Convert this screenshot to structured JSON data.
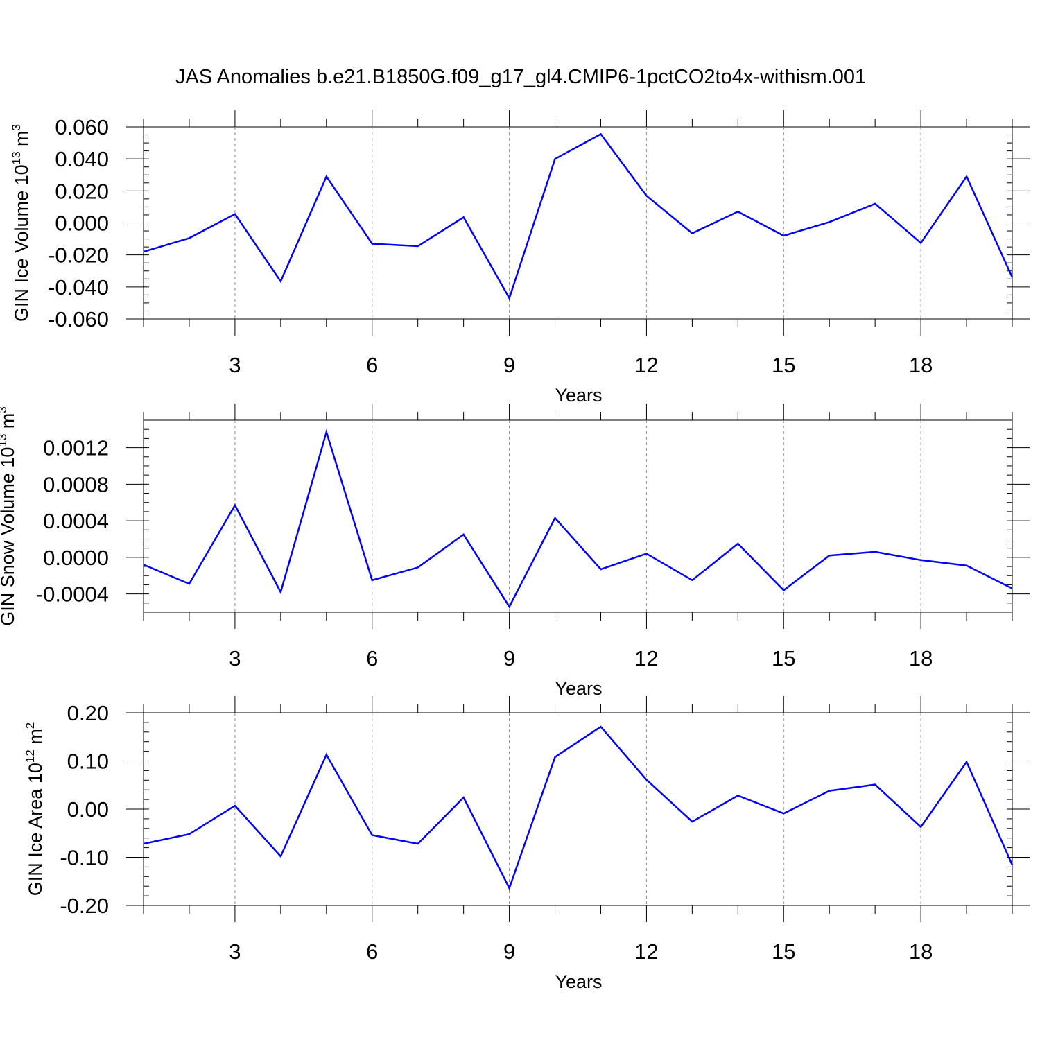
{
  "figure": {
    "title": "JAS Anomalies b.e21.B1850G.f09_g17_gl4.CMIP6-1pctCO2to4x-withism.001"
  },
  "line_color": "#0000ff",
  "chart_data": [
    {
      "type": "line",
      "xlabel": "Years",
      "ylabel_main": "GIN Ice Volume 10",
      "ylabel_exp": "13",
      "ylabel_unit": " m",
      "ylabel_unit_exp": "3",
      "xlim": [
        1,
        20
      ],
      "ylim": [
        -0.06,
        0.06
      ],
      "x_ticks": [
        3,
        6,
        9,
        12,
        15,
        18
      ],
      "x_tick_labels": [
        "3",
        "6",
        "9",
        "12",
        "15",
        "18"
      ],
      "y_ticks": [
        -0.06,
        -0.04,
        -0.02,
        0,
        0.02,
        0.04,
        0.06
      ],
      "y_tick_labels": [
        "-0.060",
        "-0.040",
        "-0.020",
        "0.000",
        "0.020",
        "0.040",
        "0.060"
      ],
      "y_minor_step": 0.005,
      "grid": "vertical dashed at major x ticks",
      "x": [
        1,
        2,
        3,
        4,
        5,
        6,
        7,
        8,
        9,
        10,
        11,
        12,
        13,
        14,
        15,
        16,
        17,
        18,
        19,
        20
      ],
      "series": [
        {
          "values": [
            -0.018,
            -0.0095,
            0.0055,
            -0.0365,
            0.029,
            -0.013,
            -0.0145,
            0.0035,
            -0.047,
            0.04,
            0.0555,
            0.017,
            -0.0065,
            0.007,
            -0.008,
            0.0005,
            0.012,
            -0.0125,
            0.029,
            -0.034
          ]
        }
      ]
    },
    {
      "type": "line",
      "xlabel": "Years",
      "ylabel_main": "GIN Snow Volume 10",
      "ylabel_exp": "13",
      "ylabel_unit": " m",
      "ylabel_unit_exp": "3",
      "xlim": [
        1,
        20
      ],
      "ylim": [
        -0.0006,
        0.0015
      ],
      "x_ticks": [
        3,
        6,
        9,
        12,
        15,
        18
      ],
      "x_tick_labels": [
        "3",
        "6",
        "9",
        "12",
        "15",
        "18"
      ],
      "y_ticks": [
        -0.0004,
        0,
        0.0004,
        0.0008,
        0.0012
      ],
      "y_tick_labels": [
        "-0.0004",
        "0.0000",
        "0.0004",
        "0.0008",
        "0.0012"
      ],
      "y_minor_step": 0.0001,
      "grid": "vertical dashed at major x ticks",
      "x": [
        1,
        2,
        3,
        4,
        5,
        6,
        7,
        8,
        9,
        10,
        11,
        12,
        13,
        14,
        15,
        16,
        17,
        18,
        19,
        20
      ],
      "series": [
        {
          "values": [
            -8e-05,
            -0.00029,
            0.00057,
            -0.00038,
            0.00137,
            -0.00025,
            -0.00011,
            0.00025,
            -0.00054,
            0.00043,
            -0.00013,
            4e-05,
            -0.00025,
            0.00015,
            -0.00036,
            2e-05,
            6e-05,
            -3e-05,
            -9e-05,
            -0.00034
          ]
        }
      ]
    },
    {
      "type": "line",
      "xlabel": "Years",
      "ylabel_main": "GIN Ice Area 10",
      "ylabel_exp": "12",
      "ylabel_unit": " m",
      "ylabel_unit_exp": "2",
      "xlim": [
        1,
        20
      ],
      "ylim": [
        -0.2,
        0.2
      ],
      "x_ticks": [
        3,
        6,
        9,
        12,
        15,
        18
      ],
      "x_tick_labels": [
        "3",
        "6",
        "9",
        "12",
        "15",
        "18"
      ],
      "y_ticks": [
        -0.2,
        -0.1,
        0,
        0.1,
        0.2
      ],
      "y_tick_labels": [
        "-0.20",
        "-0.10",
        "0.00",
        "0.10",
        "0.20"
      ],
      "y_minor_step": 0.02,
      "grid": "vertical dashed at major x ticks",
      "x": [
        1,
        2,
        3,
        4,
        5,
        6,
        7,
        8,
        9,
        10,
        11,
        12,
        13,
        14,
        15,
        16,
        17,
        18,
        19,
        20
      ],
      "series": [
        {
          "values": [
            -0.072,
            -0.052,
            0.007,
            -0.098,
            0.113,
            -0.054,
            -0.072,
            0.024,
            -0.164,
            0.108,
            0.171,
            0.061,
            -0.026,
            0.028,
            -0.009,
            0.038,
            0.051,
            -0.037,
            0.098,
            -0.116
          ]
        }
      ]
    }
  ]
}
